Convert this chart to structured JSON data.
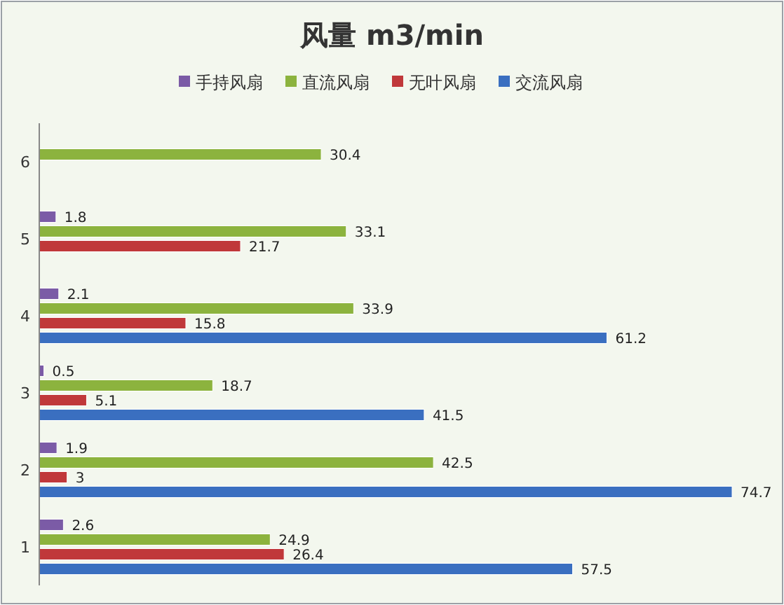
{
  "chart_data": {
    "type": "bar",
    "orientation": "horizontal",
    "title": "风量 m3/min",
    "categories": [
      "6",
      "5",
      "4",
      "3",
      "2",
      "1"
    ],
    "series": [
      {
        "name": "手持风扇",
        "color": "#7b5ba6",
        "values": [
          null,
          1.8,
          2.1,
          0.5,
          1.9,
          2.6
        ]
      },
      {
        "name": "直流风扇",
        "color": "#8cb33e",
        "values": [
          30.4,
          33.1,
          33.9,
          18.7,
          42.5,
          24.9
        ]
      },
      {
        "name": "无叶风扇",
        "color": "#c0383a",
        "values": [
          null,
          21.7,
          15.8,
          5.1,
          3,
          26.4
        ]
      },
      {
        "name": "交流风扇",
        "color": "#3a6fc0",
        "values": [
          null,
          null,
          61.2,
          41.5,
          74.7,
          57.5
        ]
      }
    ],
    "data_labels": true,
    "legend": "top",
    "grid": false
  }
}
